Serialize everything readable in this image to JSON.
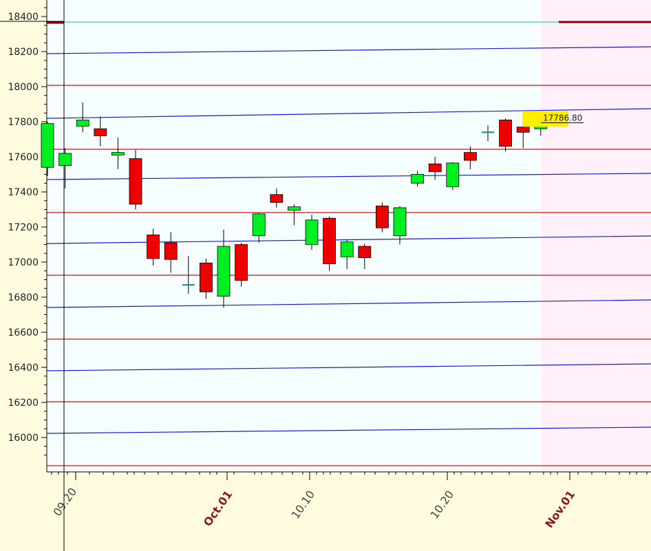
{
  "chart_data": {
    "type": "candlestick",
    "title": "",
    "xlabel": "",
    "ylabel": "",
    "ylim": [
      15850,
      18480
    ],
    "y_ticks": [
      16000,
      16200,
      16400,
      16600,
      16800,
      17000,
      17200,
      17400,
      17600,
      17800,
      18000,
      18200,
      18400
    ],
    "x_tick_labels": [
      {
        "label": "09.20",
        "style": "day"
      },
      {
        "label": "Oct.01",
        "style": "month"
      },
      {
        "label": "10.10",
        "style": "day"
      },
      {
        "label": "10.20",
        "style": "day"
      },
      {
        "label": "Nov.01",
        "style": "month"
      }
    ],
    "last_price": "17786.80",
    "candles": [
      {
        "open": 17540,
        "high": 17800,
        "low": 17490,
        "close": 17790
      },
      {
        "open": 17550,
        "high": 17650,
        "low": 17420,
        "close": 17620
      },
      {
        "open": 17775,
        "high": 17910,
        "low": 17740,
        "close": 17810
      },
      {
        "open": 17760,
        "high": 17830,
        "low": 17660,
        "close": 17720
      },
      {
        "open": 17610,
        "high": 17710,
        "low": 17530,
        "close": 17625
      },
      {
        "open": 17590,
        "high": 17640,
        "low": 17300,
        "close": 17330
      },
      {
        "open": 17155,
        "high": 17190,
        "low": 16980,
        "close": 17020
      },
      {
        "open": 17110,
        "high": 17170,
        "low": 16940,
        "close": 17015
      },
      {
        "open": 16870,
        "high": 17035,
        "low": 16820,
        "close": 16870
      },
      {
        "open": 16995,
        "high": 17020,
        "low": 16790,
        "close": 16830
      },
      {
        "open": 16805,
        "high": 17185,
        "low": 16740,
        "close": 17090
      },
      {
        "open": 17100,
        "high": 17110,
        "low": 16860,
        "close": 16895
      },
      {
        "open": 17150,
        "high": 17280,
        "low": 17110,
        "close": 17275
      },
      {
        "open": 17385,
        "high": 17420,
        "low": 17310,
        "close": 17340
      },
      {
        "open": 17295,
        "high": 17330,
        "low": 17210,
        "close": 17315
      },
      {
        "open": 17100,
        "high": 17270,
        "low": 17070,
        "close": 17240
      },
      {
        "open": 17250,
        "high": 17260,
        "low": 16950,
        "close": 16990
      },
      {
        "open": 17030,
        "high": 17125,
        "low": 16960,
        "close": 17115
      },
      {
        "open": 17090,
        "high": 17105,
        "low": 16960,
        "close": 17025
      },
      {
        "open": 17320,
        "high": 17340,
        "low": 17170,
        "close": 17195
      },
      {
        "open": 17150,
        "high": 17320,
        "low": 17100,
        "close": 17310
      },
      {
        "open": 17450,
        "high": 17520,
        "low": 17430,
        "close": 17500
      },
      {
        "open": 17560,
        "high": 17600,
        "low": 17470,
        "close": 17515
      },
      {
        "open": 17430,
        "high": 17570,
        "low": 17410,
        "close": 17565
      },
      {
        "open": 17625,
        "high": 17660,
        "low": 17530,
        "close": 17580
      },
      {
        "open": 17740,
        "high": 17780,
        "low": 17690,
        "close": 17740
      },
      {
        "open": 17810,
        "high": 17820,
        "low": 17630,
        "close": 17660
      },
      {
        "open": 17770,
        "high": 17790,
        "low": 17650,
        "close": 17740
      },
      {
        "open": 17760,
        "high": 17800,
        "low": 17720,
        "close": 17786.8
      }
    ],
    "colors": {
      "up": "#00ee22",
      "down": "#ee0000",
      "plot_bg": "#f6fdff",
      "future_bg": "#fff0fa",
      "outer_bg": "#fffbdf",
      "blue_lines": "#1a1ad6",
      "red_lines": "#dd1111",
      "top_line": "#33cccc",
      "label_bg": "#ffee00"
    }
  }
}
